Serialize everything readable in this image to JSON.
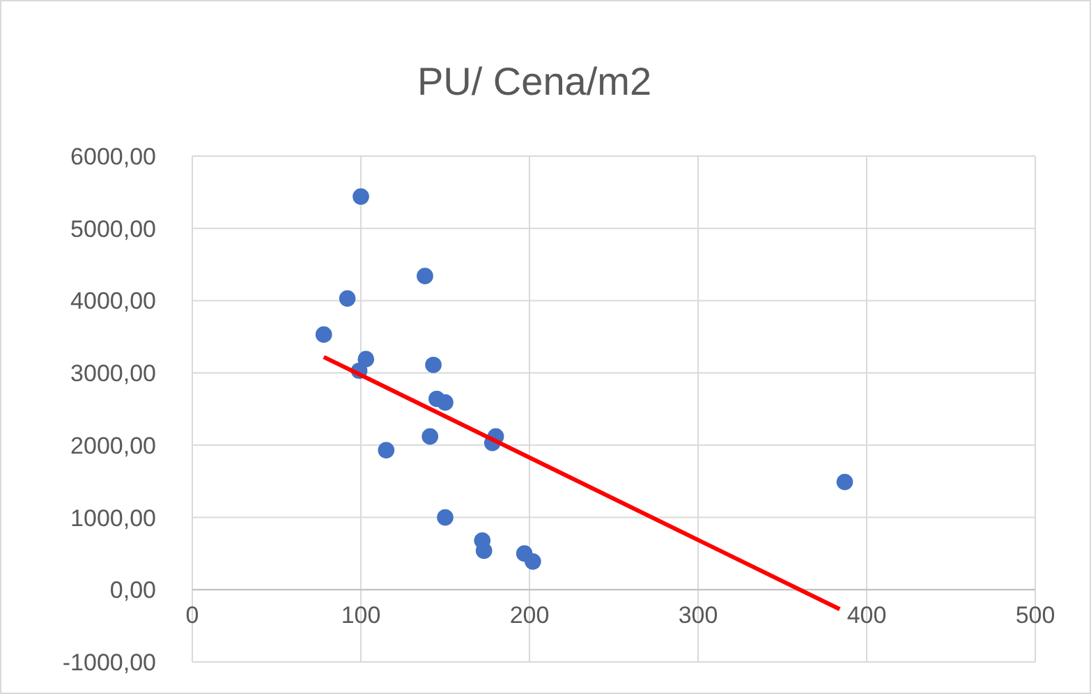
{
  "chart_data": {
    "type": "scatter",
    "title": "PU/ Cena/m2",
    "xlim": [
      0,
      500
    ],
    "xticks": [
      0,
      100,
      200,
      300,
      400,
      500
    ],
    "ylim": [
      -1000,
      6000
    ],
    "yticks": [
      {
        "value": -1000,
        "label": "-1000,00"
      },
      {
        "value": 0,
        "label": "0,00"
      },
      {
        "value": 1000,
        "label": "1000,00"
      },
      {
        "value": 2000,
        "label": "2000,00"
      },
      {
        "value": 3000,
        "label": "3000,00"
      },
      {
        "value": 4000,
        "label": "4000,00"
      },
      {
        "value": 5000,
        "label": "5000,00"
      },
      {
        "value": 6000,
        "label": "6000,00"
      }
    ],
    "grid": true,
    "marker": "circle",
    "series": [
      {
        "color": "#4472c4",
        "x": [
          100,
          92,
          78,
          138,
          103,
          99,
          143,
          145,
          150,
          180,
          178,
          141,
          115,
          150,
          172,
          173,
          197,
          202,
          387
        ],
        "values": [
          5440,
          4030,
          3530,
          4340,
          3190,
          3030,
          3110,
          2640,
          2590,
          2120,
          2030,
          2120,
          1930,
          1000,
          680,
          540,
          500,
          390,
          1490
        ]
      },
      {
        "type": "line",
        "color": "#ff0000",
        "marker": "none",
        "x": [
          78,
          384
        ],
        "values": [
          3220,
          -270
        ]
      }
    ]
  }
}
